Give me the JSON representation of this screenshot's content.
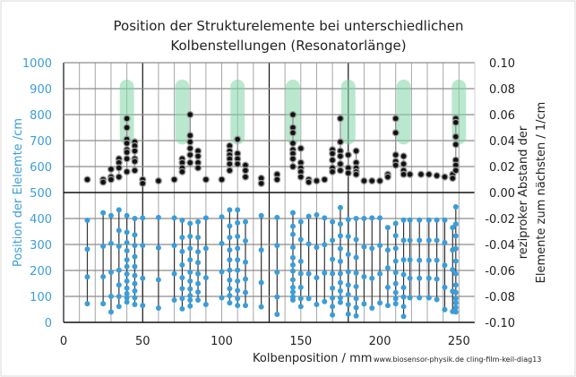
{
  "chart_data": {
    "type": "scatter",
    "title": [
      "Position der Strukturelemente bei unterschiedlichen",
      "Kolbenstellungen (Resonatorlänge)"
    ],
    "xlabel": "Kolbenposition / mm",
    "ylabel_left": "Position der Elelemte /cm",
    "ylabel_right": [
      "reziproker Abstand der",
      "Elemente zum nächsten / 1/cm"
    ],
    "footnote": "www.biosensor-physik.de  cling-film-keil-diag13",
    "xlim": [
      0,
      260
    ],
    "ylim_left": [
      0,
      1000
    ],
    "ylim_right": [
      -0.1,
      0.1
    ],
    "x_ticks": [
      "0",
      "50",
      "100",
      "150",
      "200",
      "250"
    ],
    "x_tick_values": [
      0,
      50,
      100,
      150,
      200,
      250
    ],
    "y_left_ticks": [
      "0",
      "100",
      "200",
      "300",
      "400",
      "500",
      "600",
      "700",
      "800",
      "900",
      "1000"
    ],
    "y_right_ticks": [
      "-0.10",
      "-0.08",
      "-0.06",
      "-0.04",
      "-0.02",
      "0.00",
      "0.02",
      "0.04",
      "0.06",
      "0.08",
      "0.10"
    ],
    "grid": true,
    "colors": {
      "positions": "#3b9dd8",
      "reciprocal": "#111111",
      "highlight": "#7fd6a6",
      "left_axis": "#3b9dd8"
    },
    "highlight_bands": {
      "x_centers": [
        40,
        75,
        110,
        145,
        180,
        215,
        250
      ],
      "x_width": 9,
      "y_range_right": [
        0.037,
        0.087
      ]
    },
    "series": [
      {
        "name": "Position der Elemente",
        "axis": "left",
        "columns": [
          {
            "x": 15,
            "y": [
              393,
              282,
              175,
              72
            ]
          },
          {
            "x": 25,
            "y": [
              422,
              293,
              176,
              72
            ]
          },
          {
            "x": 30,
            "y": [
              411,
              304,
              193,
              100,
              40
            ]
          },
          {
            "x": 35,
            "y": [
              433,
              354,
              293,
              201,
              144,
              100,
              61
            ]
          },
          {
            "x": 40,
            "y": [
              411,
              347,
              307,
              276,
              241,
              215,
              186,
              159,
              132,
              111,
              95,
              78
            ]
          },
          {
            "x": 45,
            "y": [
              400,
              337,
              296,
              253,
              215,
              180,
              149,
              121,
              95,
              69
            ]
          },
          {
            "x": 50,
            "y": [
              402,
              296,
              170,
              65
            ]
          },
          {
            "x": 60,
            "y": [
              404,
              287,
              164,
              55
            ]
          },
          {
            "x": 70,
            "y": [
              402,
              296,
              187,
              86
            ]
          },
          {
            "x": 75,
            "y": [
              393,
              327,
              273,
              221,
              172,
              130,
              92,
              52
            ]
          },
          {
            "x": 80,
            "y": [
              381,
              331,
              285,
              241,
              193,
              159,
              129,
              103,
              86,
              63
            ]
          },
          {
            "x": 85,
            "y": [
              387,
              327,
              272,
              230,
              187,
              149,
              117,
              86
            ]
          },
          {
            "x": 90,
            "y": [
              402,
              285,
              172,
              69
            ]
          },
          {
            "x": 100,
            "y": [
              406,
              304,
              195,
              95
            ]
          },
          {
            "x": 105,
            "y": [
              433,
              371,
              327,
              279,
              241,
              201,
              163,
              130,
              103,
              75
            ]
          },
          {
            "x": 110,
            "y": [
              433,
              383,
              331,
              285,
              241,
              201,
              159,
              123,
              92,
              65
            ]
          },
          {
            "x": 115,
            "y": [
              387,
              314,
              232,
              167,
              115,
              65
            ]
          },
          {
            "x": 125,
            "y": [
              411,
              279,
              153,
              60
            ]
          },
          {
            "x": 135,
            "y": [
              404,
              296,
              193,
              98,
              31
            ]
          },
          {
            "x": 145,
            "y": [
              422,
              370,
              339,
              289,
              249,
              221,
              198,
              164,
              135,
              117,
              98,
              86
            ]
          },
          {
            "x": 150,
            "y": [
              387,
              319,
              235,
              188,
              135,
              92,
              61
            ]
          },
          {
            "x": 155,
            "y": [
              408,
              302,
              187,
              92
            ]
          },
          {
            "x": 160,
            "y": [
              414,
              289,
              172,
              69
            ]
          },
          {
            "x": 165,
            "y": [
              402,
              299,
              190,
              80
            ]
          },
          {
            "x": 170,
            "y": [
              387,
              316,
              243,
              188,
              132,
              94,
              61,
              29
            ]
          },
          {
            "x": 175,
            "y": [
              442,
              379,
              333,
              284,
              235,
              188,
              153,
              121,
              95,
              77
            ]
          },
          {
            "x": 180,
            "y": [
              396,
              331,
              262,
              195,
              144,
              107,
              69,
              32
            ]
          },
          {
            "x": 185,
            "y": [
              400,
              319,
              250,
              190,
              138,
              92,
              57,
              25
            ]
          },
          {
            "x": 190,
            "y": [
              400,
              291,
              176,
              71
            ]
          },
          {
            "x": 195,
            "y": [
              402,
              285,
              170,
              55
            ]
          },
          {
            "x": 200,
            "y": [
              402,
              296,
              187,
              75
            ]
          },
          {
            "x": 205,
            "y": [
              365,
              279,
              210,
              135,
              65
            ]
          },
          {
            "x": 210,
            "y": [
              381,
              334,
              285,
              236,
              192,
              149,
              115,
              92,
              72
            ]
          },
          {
            "x": 215,
            "y": [
              394,
              316,
              241,
              184,
              134,
              98,
              61,
              23
            ]
          },
          {
            "x": 219,
            "y": [
              394,
              316,
              241,
              170,
              95
            ]
          },
          {
            "x": 225,
            "y": [
              394,
              316,
              239,
              170,
              95
            ]
          },
          {
            "x": 231,
            "y": [
              394,
              316,
              239,
              170,
              95
            ]
          },
          {
            "x": 236,
            "y": [
              394,
              316,
              239,
              167,
              88
            ]
          },
          {
            "x": 241,
            "y": [
              394,
              307,
              220,
              135,
              49
            ]
          },
          {
            "x": 246,
            "y": [
              365,
              279,
              203,
              120,
              42
            ]
          },
          {
            "x": 248,
            "y": [
              445,
              379,
              333,
              284,
              236,
              187,
              144,
              115,
              92,
              75,
              57,
              40
            ]
          }
        ]
      },
      {
        "name": "reziproker Abstand",
        "axis": "right",
        "columns": [
          {
            "x": 15,
            "y": [
              0.01
            ]
          },
          {
            "x": 25,
            "y": [
              0.01,
              0.008
            ]
          },
          {
            "x": 30,
            "y": [
              0.018,
              0.012,
              0.01
            ]
          },
          {
            "x": 35,
            "y": [
              0.026,
              0.023,
              0.019,
              0.012
            ]
          },
          {
            "x": 40,
            "y": [
              0.057,
              0.05,
              0.041,
              0.038,
              0.033,
              0.031,
              0.026,
              0.016
            ]
          },
          {
            "x": 45,
            "y": [
              0.039,
              0.036,
              0.032,
              0.026,
              0.024,
              0.017
            ]
          },
          {
            "x": 50,
            "y": [
              0.01,
              0.007
            ]
          },
          {
            "x": 60,
            "y": [
              0.009
            ]
          },
          {
            "x": 70,
            "y": [
              0.01
            ]
          },
          {
            "x": 75,
            "y": [
              0.026,
              0.023,
              0.019,
              0.016
            ]
          },
          {
            "x": 80,
            "y": [
              0.06,
              0.044,
              0.039,
              0.034,
              0.029,
              0.023
            ]
          },
          {
            "x": 85,
            "y": [
              0.032,
              0.028,
              0.023,
              0.019
            ]
          },
          {
            "x": 90,
            "y": [
              0.01
            ]
          },
          {
            "x": 100,
            "y": [
              0.01
            ]
          },
          {
            "x": 105,
            "y": [
              0.036,
              0.032,
              0.029,
              0.026,
              0.022,
              0.017
            ]
          },
          {
            "x": 110,
            "y": [
              0.041,
              0.03,
              0.026,
              0.022
            ]
          },
          {
            "x": 115,
            "y": [
              0.021,
              0.017,
              0.012
            ]
          },
          {
            "x": 125,
            "y": [
              0.011,
              0.007
            ]
          },
          {
            "x": 135,
            "y": [
              0.014,
              0.01
            ]
          },
          {
            "x": 145,
            "y": [
              0.06,
              0.05,
              0.046,
              0.038,
              0.033,
              0.03,
              0.026,
              0.02
            ]
          },
          {
            "x": 150,
            "y": [
              0.034,
              0.023,
              0.019,
              0.016,
              0.012
            ]
          },
          {
            "x": 155,
            "y": [
              0.01,
              0.008
            ]
          },
          {
            "x": 160,
            "y": [
              0.009
            ]
          },
          {
            "x": 165,
            "y": [
              0.01
            ]
          },
          {
            "x": 170,
            "y": [
              0.033,
              0.03,
              0.025,
              0.019,
              0.016
            ]
          },
          {
            "x": 175,
            "y": [
              0.057,
              0.039,
              0.032,
              0.028,
              0.022,
              0.017
            ]
          },
          {
            "x": 180,
            "y": [
              0.029,
              0.019,
              0.015
            ]
          },
          {
            "x": 185,
            "y": [
              0.032,
              0.023,
              0.019,
              0.016,
              0.014
            ]
          },
          {
            "x": 190,
            "y": [
              0.009
            ]
          },
          {
            "x": 195,
            "y": [
              0.009
            ]
          },
          {
            "x": 200,
            "y": [
              0.009
            ]
          },
          {
            "x": 205,
            "y": [
              0.014,
              0.012
            ]
          },
          {
            "x": 210,
            "y": [
              0.057,
              0.046,
              0.029,
              0.024,
              0.021
            ]
          },
          {
            "x": 215,
            "y": [
              0.028,
              0.022,
              0.017,
              0.014
            ]
          },
          {
            "x": 219,
            "y": [
              0.014
            ]
          },
          {
            "x": 226,
            "y": [
              0.014
            ]
          },
          {
            "x": 231,
            "y": [
              0.014
            ]
          },
          {
            "x": 236,
            "y": [
              0.013
            ]
          },
          {
            "x": 241,
            "y": [
              0.012
            ]
          },
          {
            "x": 246,
            "y": [
              0.014,
              0.011
            ]
          },
          {
            "x": 248,
            "y": [
              0.057,
              0.054,
              0.043,
              0.037,
              0.025,
              0.021,
              0.017
            ]
          }
        ]
      }
    ]
  }
}
